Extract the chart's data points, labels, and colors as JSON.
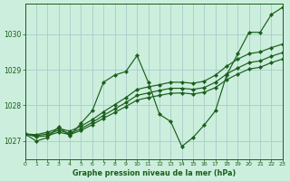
{
  "title": "Graphe pression niveau de la mer (hPa)",
  "background_color": "#cceedd",
  "grid_color": "#aacccc",
  "line_color": "#1a5e1a",
  "x_min": 0,
  "x_max": 23,
  "y_min": 1026.5,
  "y_max": 1030.85,
  "yticks": [
    1027,
    1028,
    1029,
    1030
  ],
  "xticks": [
    0,
    1,
    2,
    3,
    4,
    5,
    6,
    7,
    8,
    9,
    10,
    11,
    12,
    13,
    14,
    15,
    16,
    17,
    18,
    19,
    20,
    21,
    22,
    23
  ],
  "series": [
    {
      "x": [
        0,
        1,
        2,
        3,
        4,
        5,
        6,
        7,
        8,
        9,
        10,
        11,
        12,
        13,
        14,
        15,
        16,
        17,
        18,
        19,
        20,
        21,
        22,
        23
      ],
      "y": [
        1027.2,
        1027.0,
        1027.1,
        1027.4,
        1027.15,
        1027.5,
        1027.85,
        1028.65,
        1028.85,
        1028.95,
        1029.4,
        1028.65,
        1027.75,
        1027.55,
        1026.85,
        1027.1,
        1027.45,
        1027.85,
        1028.85,
        1029.45,
        1030.05,
        1030.05,
        1030.55,
        1030.75
      ]
    },
    {
      "x": [
        0,
        1,
        2,
        3,
        4,
        5,
        6,
        7,
        8,
        9,
        10,
        11,
        12,
        13,
        14,
        15,
        16,
        17,
        18,
        19,
        20,
        21,
        22,
        23
      ],
      "y": [
        1027.2,
        1027.18,
        1027.25,
        1027.35,
        1027.28,
        1027.42,
        1027.6,
        1027.82,
        1028.02,
        1028.22,
        1028.45,
        1028.52,
        1028.58,
        1028.65,
        1028.65,
        1028.62,
        1028.68,
        1028.85,
        1029.1,
        1029.3,
        1029.45,
        1029.5,
        1029.62,
        1029.72
      ]
    },
    {
      "x": [
        0,
        1,
        2,
        3,
        4,
        5,
        6,
        7,
        8,
        9,
        10,
        11,
        12,
        13,
        14,
        15,
        16,
        17,
        18,
        19,
        20,
        21,
        22,
        23
      ],
      "y": [
        1027.2,
        1027.15,
        1027.2,
        1027.3,
        1027.22,
        1027.35,
        1027.52,
        1027.72,
        1027.9,
        1028.08,
        1028.28,
        1028.35,
        1028.42,
        1028.48,
        1028.48,
        1028.45,
        1028.5,
        1028.65,
        1028.88,
        1029.05,
        1029.2,
        1029.25,
        1029.38,
        1029.48
      ]
    },
    {
      "x": [
        0,
        1,
        2,
        3,
        4,
        5,
        6,
        7,
        8,
        9,
        10,
        11,
        12,
        13,
        14,
        15,
        16,
        17,
        18,
        19,
        20,
        21,
        22,
        23
      ],
      "y": [
        1027.2,
        1027.12,
        1027.15,
        1027.25,
        1027.18,
        1027.3,
        1027.46,
        1027.64,
        1027.8,
        1027.97,
        1028.15,
        1028.22,
        1028.28,
        1028.34,
        1028.35,
        1028.32,
        1028.37,
        1028.5,
        1028.72,
        1028.88,
        1029.02,
        1029.07,
        1029.2,
        1029.3
      ]
    }
  ]
}
